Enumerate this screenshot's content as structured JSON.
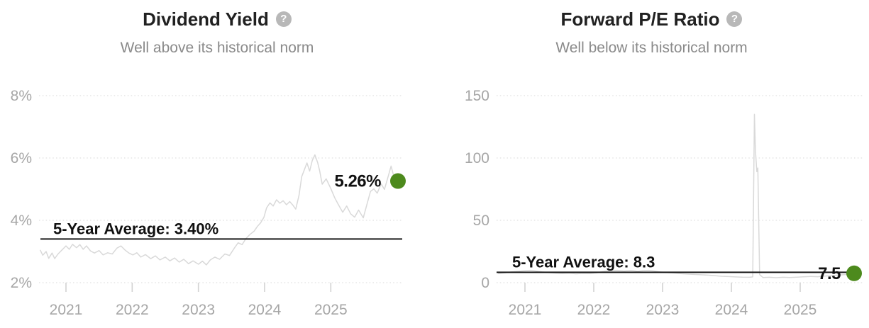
{
  "ui": {
    "help_icon_glyph": "?"
  },
  "colors": {
    "accent_green": "#4d8a1d",
    "data_line": "#d9d9d9",
    "average_line": "#1a1a1a",
    "annotation_text": "#111111",
    "grid": "#e0e0e0",
    "tick": "#d2d2d2",
    "axis_text": "#a6a6a6",
    "title_text": "#212121",
    "subtitle_text": "#8a8a8a",
    "help_icon_bg": "#b8b8b8"
  },
  "chart_data": [
    {
      "type": "line",
      "title": "Dividend Yield",
      "subtitle": "Well above its historical norm",
      "help_icon": "question-mark-icon",
      "grid": "horizontal-dotted",
      "legend": "none",
      "x_ticks": [
        "2021",
        "2022",
        "2023",
        "2024",
        "2025"
      ],
      "x_tick_years": [
        2021,
        2022,
        2023,
        2024,
        2025
      ],
      "xlim": [
        2020.6,
        2026.0
      ],
      "y_ticks": [
        {
          "label": "8%",
          "value": 8
        },
        {
          "label": "6%",
          "value": 6
        },
        {
          "label": "4%",
          "value": 4
        },
        {
          "label": "2%",
          "value": 2
        }
      ],
      "ylim": [
        2,
        8
      ],
      "average": {
        "label": "5-Year Average: 3.40%",
        "value": 3.4
      },
      "current": {
        "label": "5.26%",
        "value": 5.26
      },
      "series": [
        {
          "name": "Dividend Yield",
          "points": [
            [
              2020.61,
              3.05
            ],
            [
              2020.65,
              2.88
            ],
            [
              2020.7,
              3.0
            ],
            [
              2020.74,
              2.78
            ],
            [
              2020.79,
              2.95
            ],
            [
              2020.83,
              2.77
            ],
            [
              2020.88,
              2.92
            ],
            [
              2020.94,
              3.05
            ],
            [
              2021.0,
              3.18
            ],
            [
              2021.05,
              3.07
            ],
            [
              2021.1,
              3.23
            ],
            [
              2021.16,
              3.12
            ],
            [
              2021.21,
              3.22
            ],
            [
              2021.26,
              3.07
            ],
            [
              2021.31,
              3.18
            ],
            [
              2021.37,
              3.02
            ],
            [
              2021.43,
              2.95
            ],
            [
              2021.5,
              3.03
            ],
            [
              2021.56,
              2.89
            ],
            [
              2021.63,
              2.96
            ],
            [
              2021.7,
              2.92
            ],
            [
              2021.77,
              3.11
            ],
            [
              2021.83,
              3.18
            ],
            [
              2021.89,
              3.05
            ],
            [
              2021.95,
              2.95
            ],
            [
              2022.01,
              2.89
            ],
            [
              2022.07,
              2.96
            ],
            [
              2022.13,
              2.82
            ],
            [
              2022.2,
              2.9
            ],
            [
              2022.28,
              2.77
            ],
            [
              2022.35,
              2.86
            ],
            [
              2022.42,
              2.73
            ],
            [
              2022.5,
              2.82
            ],
            [
              2022.57,
              2.7
            ],
            [
              2022.64,
              2.79
            ],
            [
              2022.71,
              2.66
            ],
            [
              2022.78,
              2.75
            ],
            [
              2022.85,
              2.61
            ],
            [
              2022.92,
              2.7
            ],
            [
              2023.0,
              2.59
            ],
            [
              2023.06,
              2.69
            ],
            [
              2023.12,
              2.57
            ],
            [
              2023.18,
              2.73
            ],
            [
              2023.25,
              2.82
            ],
            [
              2023.32,
              2.75
            ],
            [
              2023.4,
              2.92
            ],
            [
              2023.47,
              2.87
            ],
            [
              2023.54,
              3.1
            ],
            [
              2023.6,
              3.28
            ],
            [
              2023.66,
              3.22
            ],
            [
              2023.72,
              3.42
            ],
            [
              2023.78,
              3.55
            ],
            [
              2023.84,
              3.65
            ],
            [
              2023.89,
              3.8
            ],
            [
              2023.94,
              3.92
            ],
            [
              2023.99,
              4.1
            ],
            [
              2024.03,
              4.4
            ],
            [
              2024.08,
              4.56
            ],
            [
              2024.13,
              4.46
            ],
            [
              2024.18,
              4.66
            ],
            [
              2024.23,
              4.55
            ],
            [
              2024.28,
              4.63
            ],
            [
              2024.33,
              4.5
            ],
            [
              2024.38,
              4.6
            ],
            [
              2024.43,
              4.48
            ],
            [
              2024.47,
              4.36
            ],
            [
              2024.52,
              4.8
            ],
            [
              2024.56,
              5.4
            ],
            [
              2024.6,
              5.62
            ],
            [
              2024.64,
              5.84
            ],
            [
              2024.68,
              5.58
            ],
            [
              2024.72,
              5.92
            ],
            [
              2024.76,
              6.1
            ],
            [
              2024.8,
              5.86
            ],
            [
              2024.83,
              5.6
            ],
            [
              2024.87,
              5.16
            ],
            [
              2024.93,
              5.33
            ],
            [
              2025.0,
              5.02
            ],
            [
              2025.06,
              4.72
            ],
            [
              2025.11,
              4.52
            ],
            [
              2025.18,
              4.26
            ],
            [
              2025.24,
              4.46
            ],
            [
              2025.3,
              4.21
            ],
            [
              2025.36,
              4.1
            ],
            [
              2025.42,
              4.33
            ],
            [
              2025.49,
              4.08
            ],
            [
              2025.55,
              4.55
            ],
            [
              2025.6,
              4.93
            ],
            [
              2025.65,
              5.01
            ],
            [
              2025.7,
              4.87
            ],
            [
              2025.76,
              5.17
            ],
            [
              2025.81,
              4.99
            ],
            [
              2025.86,
              5.36
            ],
            [
              2025.91,
              5.74
            ],
            [
              2025.95,
              5.42
            ],
            [
              2025.98,
              5.26
            ]
          ]
        }
      ]
    },
    {
      "type": "line",
      "title": "Forward P/E Ratio",
      "subtitle": "Well below its historical norm",
      "help_icon": "question-mark-icon",
      "grid": "horizontal-dotted",
      "legend": "none",
      "x_ticks": [
        "2021",
        "2022",
        "2023",
        "2024",
        "2025"
      ],
      "x_tick_years": [
        2021,
        2022,
        2023,
        2024,
        2025
      ],
      "xlim": [
        2020.6,
        2025.8
      ],
      "y_ticks": [
        {
          "label": "150",
          "value": 150
        },
        {
          "label": "100",
          "value": 100
        },
        {
          "label": "50",
          "value": 50
        },
        {
          "label": "0",
          "value": 0
        }
      ],
      "ylim": [
        0,
        150
      ],
      "average": {
        "label": "5-Year Average: 8.3",
        "value": 8.3
      },
      "current": {
        "label": "7.5",
        "value": 7.5
      },
      "series": [
        {
          "name": "Forward P/E Ratio",
          "points": [
            [
              2020.61,
              7.2
            ],
            [
              2020.7,
              7.8
            ],
            [
              2020.8,
              8.6
            ],
            [
              2020.9,
              9.1
            ],
            [
              2021.0,
              9.6
            ],
            [
              2021.08,
              9.9
            ],
            [
              2021.16,
              9.3
            ],
            [
              2021.25,
              8.6
            ],
            [
              2021.34,
              8.1
            ],
            [
              2021.44,
              7.6
            ],
            [
              2021.54,
              7.2
            ],
            [
              2021.64,
              7.5
            ],
            [
              2021.74,
              7.1
            ],
            [
              2021.84,
              7.4
            ],
            [
              2021.94,
              7.2
            ],
            [
              2022.04,
              7.9
            ],
            [
              2022.14,
              9.0
            ],
            [
              2022.24,
              9.6
            ],
            [
              2022.34,
              9.9
            ],
            [
              2022.44,
              9.4
            ],
            [
              2022.54,
              9.8
            ],
            [
              2022.64,
              9.1
            ],
            [
              2022.72,
              9.7
            ],
            [
              2022.8,
              9.9
            ],
            [
              2022.88,
              9.3
            ],
            [
              2022.96,
              8.6
            ],
            [
              2023.06,
              8.1
            ],
            [
              2023.16,
              7.7
            ],
            [
              2023.26,
              7.3
            ],
            [
              2023.36,
              6.9
            ],
            [
              2023.46,
              6.6
            ],
            [
              2023.56,
              6.3
            ],
            [
              2023.66,
              6.0
            ],
            [
              2023.76,
              5.6
            ],
            [
              2023.86,
              5.1
            ],
            [
              2023.96,
              4.9
            ],
            [
              2024.06,
              4.6
            ],
            [
              2024.16,
              4.4
            ],
            [
              2024.26,
              4.3
            ],
            [
              2024.31,
              4.6
            ],
            [
              2024.335,
              135.0
            ],
            [
              2024.35,
              106.0
            ],
            [
              2024.37,
              89.0
            ],
            [
              2024.385,
              92.0
            ],
            [
              2024.41,
              6.5
            ],
            [
              2024.46,
              4.1
            ],
            [
              2024.55,
              4.3
            ],
            [
              2024.65,
              4.0
            ],
            [
              2024.75,
              4.3
            ],
            [
              2024.85,
              4.1
            ],
            [
              2024.95,
              4.4
            ],
            [
              2025.05,
              4.7
            ],
            [
              2025.15,
              5.0
            ],
            [
              2025.25,
              4.8
            ],
            [
              2025.35,
              5.3
            ],
            [
              2025.45,
              5.6
            ],
            [
              2025.55,
              6.0
            ],
            [
              2025.65,
              6.5
            ],
            [
              2025.72,
              7.0
            ],
            [
              2025.78,
              7.5
            ]
          ]
        }
      ]
    }
  ]
}
